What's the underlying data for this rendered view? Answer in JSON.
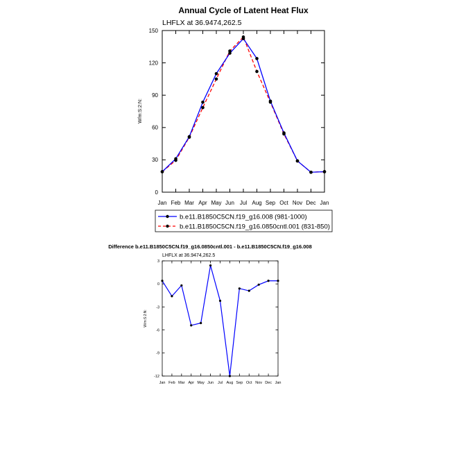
{
  "title": "Annual Cycle of Latent Heat Flux",
  "colors": {
    "series1": "#0000ff",
    "series2": "#ff0000",
    "marker": "#000000",
    "frame": "#000000"
  },
  "chart_data": [
    {
      "type": "line",
      "subtitle": "LHFLX at 36.9474,262.5",
      "ylabel": "W/m:S:2:N:",
      "xlabel": "",
      "categories": [
        "Jan",
        "Feb",
        "Mar",
        "Apr",
        "May",
        "Jun",
        "Jul",
        "Aug",
        "Sep",
        "Oct",
        "Nov",
        "Dec",
        "Jan"
      ],
      "ylim": [
        0,
        150
      ],
      "yticks": [
        0,
        30,
        60,
        90,
        120,
        150
      ],
      "grid": false,
      "legend_position": "bottom",
      "series": [
        {
          "name": "b.e11.B1850C5CN.f19_g16.008 (981-1000)",
          "style": "solid",
          "color": "#0000ff",
          "values": [
            19.0,
            31.0,
            51.5,
            83.5,
            110.0,
            129.0,
            142.5,
            124.0,
            84.5,
            55.0,
            29.0,
            18.5,
            19.0
          ]
        },
        {
          "name": "b.e11.B1850C5CN.f19_g16.0850cntl.001 (831-850)",
          "style": "dashed",
          "color": "#ff0000",
          "values": [
            19.0,
            29.5,
            51.0,
            78.5,
            105.0,
            131.0,
            144.0,
            112.0,
            83.5,
            54.0,
            29.0,
            18.5,
            19.0
          ]
        }
      ]
    },
    {
      "type": "line",
      "title": "Difference b.e11.B1850C5CN.f19_g16.0850cntl.001 - b.e11.B1850C5CN.f19_g16.008",
      "subtitle": "LHFLX at 36.9474,262.5",
      "ylabel": "W/m:S:2:N:",
      "xlabel": "",
      "categories": [
        "Jan",
        "Feb",
        "Mar",
        "Apr",
        "May",
        "Jun",
        "Jul",
        "Aug",
        "Sep",
        "Oct",
        "Nov",
        "Dec",
        "Jan"
      ],
      "ylim": [
        -12,
        3
      ],
      "yticks": [
        -12,
        -9,
        -6,
        -3,
        0,
        3
      ],
      "grid": false,
      "series": [
        {
          "name": "",
          "style": "solid",
          "color": "#0000ff",
          "values": [
            0.4,
            -1.6,
            -0.2,
            -5.4,
            -5.1,
            2.4,
            -2.2,
            -12.0,
            -0.6,
            -0.9,
            -0.1,
            0.4,
            0.4
          ]
        }
      ]
    }
  ]
}
